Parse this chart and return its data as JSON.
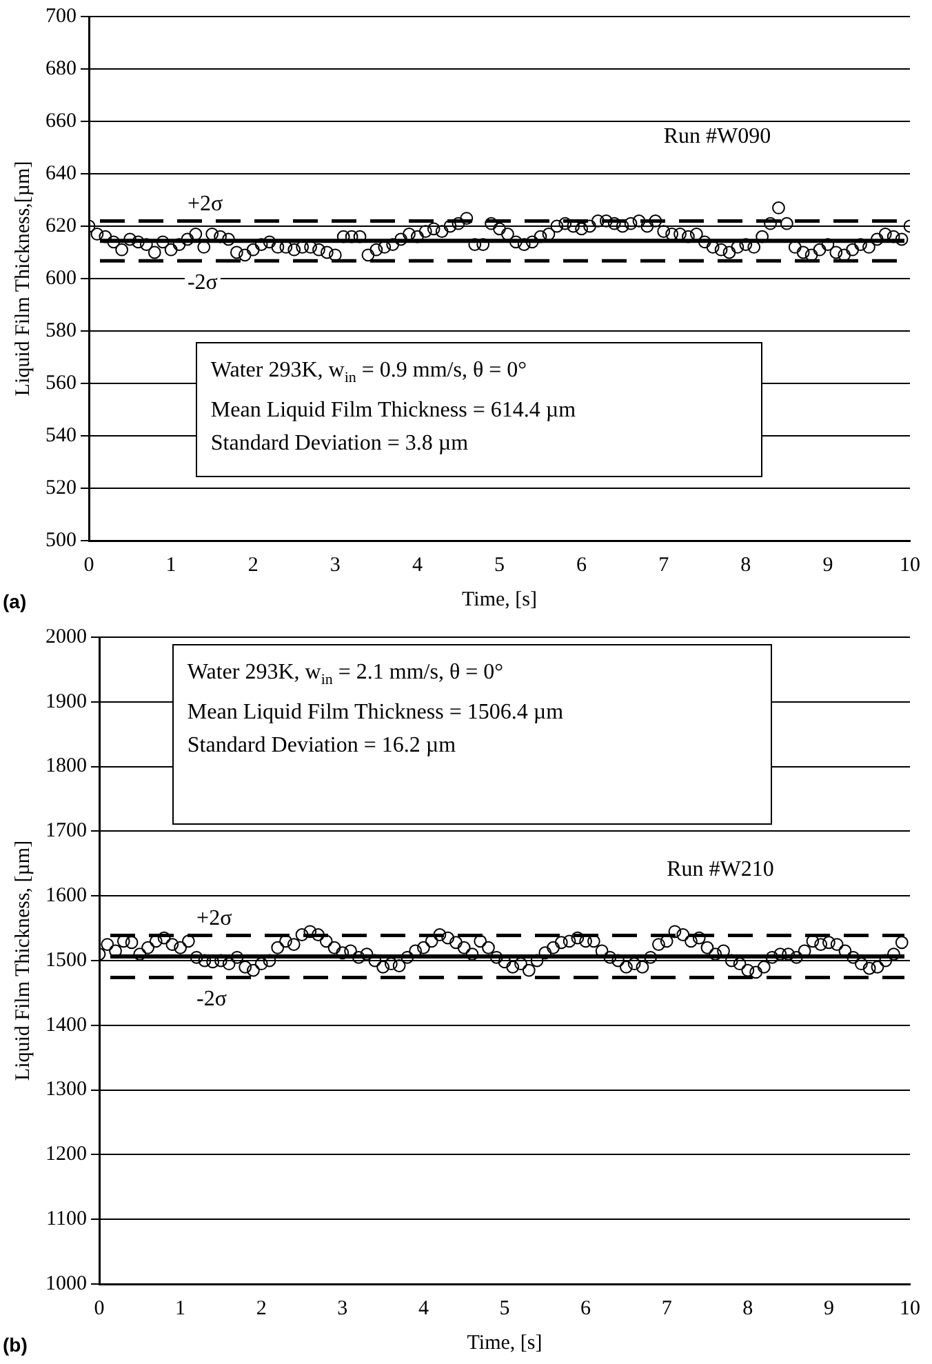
{
  "chart_data": [
    {
      "type": "scatter",
      "xlabel": "Time, [s]",
      "ylabel": "Liquid Film Thickness,[µm]",
      "x": [
        0,
        0.1,
        0.2,
        0.3,
        0.4,
        0.5,
        0.6,
        0.7,
        0.8,
        0.9,
        1,
        1.1,
        1.2,
        1.3,
        1.4,
        1.5,
        1.6,
        1.7,
        1.8,
        1.9,
        2,
        2.1,
        2.2,
        2.3,
        2.4,
        2.5,
        2.6,
        2.7,
        2.8,
        2.9,
        3,
        3.1,
        3.2,
        3.3,
        3.4,
        3.5,
        3.6,
        3.7,
        3.8,
        3.9,
        4,
        4.1,
        4.2,
        4.3,
        4.4,
        4.5,
        4.6,
        4.7,
        4.8,
        4.9,
        5,
        5.1,
        5.2,
        5.3,
        5.4,
        5.5,
        5.6,
        5.7,
        5.8,
        5.9,
        6,
        6.1,
        6.2,
        6.3,
        6.4,
        6.5,
        6.6,
        6.7,
        6.8,
        6.9,
        7,
        7.1,
        7.2,
        7.3,
        7.4,
        7.5,
        7.6,
        7.7,
        7.8,
        7.9,
        8,
        8.1,
        8.2,
        8.3,
        8.4,
        8.5,
        8.6,
        8.7,
        8.8,
        8.9,
        9,
        9.1,
        9.2,
        9.3,
        9.4,
        9.5,
        9.6,
        9.7,
        9.8,
        9.9,
        10
      ],
      "series": [
        {
          "color": "#000000",
          "values": [
            620,
            617,
            616,
            614,
            611,
            615,
            614,
            613,
            610,
            614,
            611,
            613,
            615,
            617,
            612,
            617,
            616,
            615,
            610,
            609,
            611,
            613,
            614,
            612,
            612,
            611,
            612,
            612,
            611,
            610,
            609,
            616,
            616,
            616,
            609,
            611,
            612,
            613,
            615,
            617,
            616,
            618,
            619,
            618,
            620,
            621,
            623,
            613,
            613,
            621,
            619,
            617,
            614,
            613,
            614,
            616,
            617,
            620,
            621,
            620,
            619,
            620,
            622,
            622,
            621,
            620,
            621,
            622,
            620,
            622,
            618,
            617,
            617,
            616,
            617,
            614,
            612,
            611,
            610,
            612,
            613,
            612,
            616,
            621,
            627,
            621,
            612,
            610,
            609,
            611,
            613,
            610,
            609,
            611,
            613,
            612,
            615,
            617,
            616,
            615,
            620
          ]
        }
      ],
      "xlim": [
        0,
        10
      ],
      "xticks": [
        0,
        1,
        2,
        3,
        4,
        5,
        6,
        7,
        8,
        9,
        10
      ],
      "ylim": [
        500,
        700
      ],
      "yticks": [
        500,
        520,
        540,
        560,
        580,
        600,
        620,
        640,
        660,
        680,
        700
      ],
      "grid": "y",
      "legend": false,
      "marker": "circle",
      "ref_lines": [
        {
          "axis": "y",
          "value": 614.4,
          "label": null,
          "color": "#000000",
          "line_style": "solid"
        },
        {
          "axis": "y",
          "value": 622.0,
          "label": "+2σ",
          "color": "#000000",
          "line_style": "dashed"
        },
        {
          "axis": "y",
          "value": 606.8,
          "label": "-2σ",
          "color": "#000000",
          "line_style": "dashed"
        }
      ],
      "annotations": [
        "Water 293K,  w$_{in}$ = 0.9 mm/s, θ =  0°",
        "Mean Liquid Film Thickness = 614.4 µm",
        "Standard Deviation = 3.8 µm",
        "Run #W090",
        "(a)"
      ]
    },
    {
      "type": "scatter",
      "xlabel": "Time, [s]",
      "ylabel": "Liquid Film Thickness, [µm]",
      "x": [
        0,
        0.1,
        0.2,
        0.3,
        0.4,
        0.5,
        0.6,
        0.7,
        0.8,
        0.9,
        1,
        1.1,
        1.2,
        1.3,
        1.4,
        1.5,
        1.6,
        1.7,
        1.8,
        1.9,
        2,
        2.1,
        2.2,
        2.3,
        2.4,
        2.5,
        2.6,
        2.7,
        2.8,
        2.9,
        3,
        3.1,
        3.2,
        3.3,
        3.4,
        3.5,
        3.6,
        3.7,
        3.8,
        3.9,
        4,
        4.1,
        4.2,
        4.3,
        4.4,
        4.5,
        4.6,
        4.7,
        4.8,
        4.9,
        5,
        5.1,
        5.2,
        5.3,
        5.4,
        5.5,
        5.6,
        5.7,
        5.8,
        5.9,
        6,
        6.1,
        6.2,
        6.3,
        6.4,
        6.5,
        6.6,
        6.7,
        6.8,
        6.9,
        7,
        7.1,
        7.2,
        7.3,
        7.4,
        7.5,
        7.6,
        7.7,
        7.8,
        7.9,
        8,
        8.1,
        8.2,
        8.3,
        8.4,
        8.5,
        8.6,
        8.7,
        8.8,
        8.9,
        9,
        9.1,
        9.2,
        9.3,
        9.4,
        9.5,
        9.6,
        9.7,
        9.8,
        9.9
      ],
      "series": [
        {
          "color": "#000000",
          "values": [
            1510,
            1525,
            1515,
            1530,
            1528,
            1510,
            1520,
            1530,
            1535,
            1525,
            1520,
            1530,
            1505,
            1500,
            1498,
            1500,
            1495,
            1505,
            1490,
            1485,
            1495,
            1500,
            1520,
            1530,
            1525,
            1540,
            1545,
            1540,
            1530,
            1520,
            1512,
            1515,
            1505,
            1510,
            1500,
            1490,
            1495,
            1492,
            1505,
            1515,
            1520,
            1530,
            1540,
            1535,
            1528,
            1520,
            1510,
            1530,
            1520,
            1505,
            1498,
            1490,
            1495,
            1485,
            1500,
            1512,
            1520,
            1528,
            1530,
            1535,
            1530,
            1530,
            1515,
            1505,
            1500,
            1490,
            1495,
            1490,
            1505,
            1525,
            1530,
            1545,
            1540,
            1530,
            1535,
            1520,
            1510,
            1515,
            1500,
            1495,
            1485,
            1482,
            1490,
            1505,
            1510,
            1510,
            1505,
            1515,
            1530,
            1525,
            1528,
            1525,
            1515,
            1505,
            1495,
            1488,
            1490,
            1500,
            1510,
            1528
          ]
        }
      ],
      "xlim": [
        0,
        10
      ],
      "xticks": [
        0,
        1,
        2,
        3,
        4,
        5,
        6,
        7,
        8,
        9,
        10
      ],
      "ylim": [
        1000,
        2000
      ],
      "yticks": [
        1000,
        1100,
        1200,
        1300,
        1400,
        1500,
        1600,
        1700,
        1800,
        1900,
        2000
      ],
      "grid": "y",
      "legend": false,
      "marker": "circle",
      "ref_lines": [
        {
          "axis": "y",
          "value": 1506.4,
          "label": null,
          "color": "#000000",
          "line_style": "solid"
        },
        {
          "axis": "y",
          "value": 1538.8,
          "label": "+2σ",
          "color": "#000000",
          "line_style": "dashed"
        },
        {
          "axis": "y",
          "value": 1474.0,
          "label": "-2σ",
          "color": "#000000",
          "line_style": "dashed"
        }
      ],
      "annotations": [
        "Water 293K,  w$_{in}$ = 2.1 mm/s, θ =  0°",
        "Mean Liquid Film Thickness = 1506.4 µm",
        "Standard Deviation = 16.2 µm",
        "Run #W210",
        "(b)"
      ]
    }
  ]
}
